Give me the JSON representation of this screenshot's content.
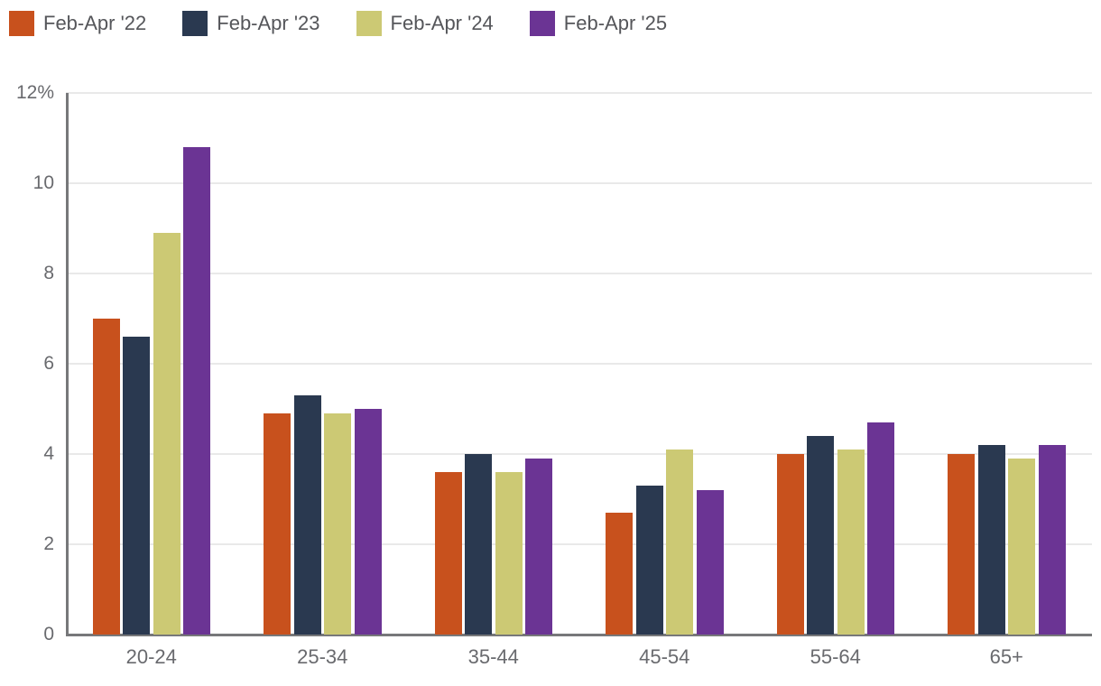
{
  "chart_data": {
    "type": "bar",
    "title": "",
    "xlabel": "",
    "ylabel": "",
    "categories": [
      "20-24",
      "25-34",
      "35-44",
      "45-54",
      "55-64",
      "65+"
    ],
    "series": [
      {
        "name": "Feb-Apr '22",
        "color": "#C8511D",
        "values": [
          7.0,
          4.9,
          3.6,
          2.7,
          4.0,
          4.0
        ]
      },
      {
        "name": "Feb-Apr '23",
        "color": "#2A3950",
        "values": [
          6.6,
          5.3,
          4.0,
          3.3,
          4.4,
          4.2
        ]
      },
      {
        "name": "Feb-Apr '24",
        "color": "#CCC974",
        "values": [
          8.9,
          4.9,
          3.6,
          4.1,
          4.1,
          3.9
        ]
      },
      {
        "name": "Feb-Apr '25",
        "color": "#6B3494",
        "values": [
          10.8,
          5.0,
          3.9,
          3.2,
          4.7,
          4.2
        ]
      }
    ],
    "y_axis": {
      "min": 0,
      "max": 12,
      "tick_step": 2,
      "tick_values": [
        0,
        2,
        4,
        6,
        8,
        10,
        12
      ],
      "tick_labels": [
        "0",
        "2",
        "4",
        "6",
        "8",
        "10",
        "12%"
      ]
    },
    "grid": true,
    "legend_position": "top-left",
    "colors": {
      "gridline": "#E9E9E9",
      "axis": "#77787A",
      "legend_text": "#55565A",
      "tick_text": "#696A6E",
      "background": "#FFFFFF"
    }
  }
}
